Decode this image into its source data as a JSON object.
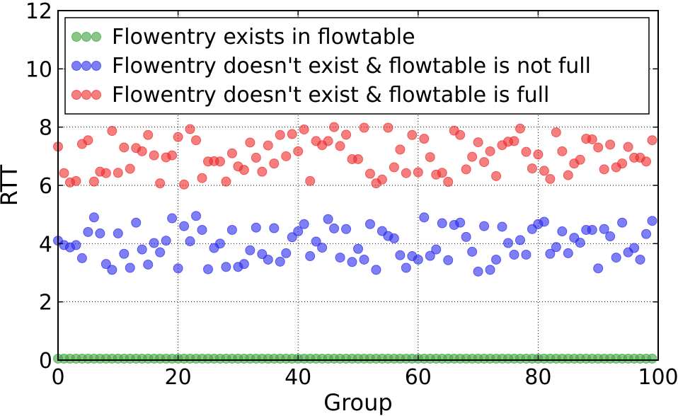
{
  "chart_data": {
    "type": "scatter",
    "title": "",
    "xlabel": "Group",
    "ylabel": "RTT",
    "xlim": [
      0,
      100
    ],
    "ylim": [
      0,
      12
    ],
    "xticks": [
      0,
      20,
      40,
      60,
      80,
      100
    ],
    "yticks": [
      0,
      2,
      4,
      6,
      8,
      10,
      12
    ],
    "grid": true,
    "legend_position": "top-left",
    "series": [
      {
        "name": "Flowentry exists in flowtable",
        "color": "#3aa23a",
        "x": [
          0,
          1,
          2,
          3,
          4,
          5,
          6,
          7,
          8,
          9,
          10,
          11,
          12,
          13,
          14,
          15,
          16,
          17,
          18,
          19,
          20,
          21,
          22,
          23,
          24,
          25,
          26,
          27,
          28,
          29,
          30,
          31,
          32,
          33,
          34,
          35,
          36,
          37,
          38,
          39,
          40,
          41,
          42,
          43,
          44,
          45,
          46,
          47,
          48,
          49,
          50,
          51,
          52,
          53,
          54,
          55,
          56,
          57,
          58,
          59,
          60,
          61,
          62,
          63,
          64,
          65,
          66,
          67,
          68,
          69,
          70,
          71,
          72,
          73,
          74,
          75,
          76,
          77,
          78,
          79,
          80,
          81,
          82,
          83,
          84,
          85,
          86,
          87,
          88,
          89,
          90,
          91,
          92,
          93,
          94,
          95,
          96,
          97,
          98,
          99
        ],
        "y": [
          0.05,
          0.05,
          0.05,
          0.05,
          0.05,
          0.05,
          0.05,
          0.05,
          0.05,
          0.05,
          0.05,
          0.05,
          0.05,
          0.05,
          0.05,
          0.05,
          0.05,
          0.05,
          0.05,
          0.05,
          0.05,
          0.05,
          0.05,
          0.05,
          0.05,
          0.05,
          0.05,
          0.05,
          0.05,
          0.05,
          0.05,
          0.05,
          0.05,
          0.05,
          0.05,
          0.05,
          0.05,
          0.05,
          0.05,
          0.05,
          0.05,
          0.05,
          0.05,
          0.05,
          0.05,
          0.05,
          0.05,
          0.05,
          0.05,
          0.05,
          0.05,
          0.05,
          0.05,
          0.05,
          0.05,
          0.05,
          0.05,
          0.05,
          0.05,
          0.05,
          0.05,
          0.05,
          0.05,
          0.05,
          0.05,
          0.05,
          0.05,
          0.05,
          0.05,
          0.05,
          0.05,
          0.05,
          0.05,
          0.05,
          0.05,
          0.05,
          0.05,
          0.05,
          0.05,
          0.05,
          0.05,
          0.05,
          0.05,
          0.05,
          0.05,
          0.05,
          0.05,
          0.05,
          0.05,
          0.05,
          0.05,
          0.05,
          0.05,
          0.05,
          0.05,
          0.05,
          0.05,
          0.05,
          0.05,
          0.05
        ]
      },
      {
        "name": "Flowentry doesn't exist & flowtable is not full",
        "color": "#2a2aee",
        "x": [
          0,
          1,
          2,
          3,
          4,
          5,
          6,
          7,
          8,
          9,
          10,
          11,
          12,
          13,
          14,
          15,
          16,
          17,
          18,
          19,
          20,
          21,
          22,
          23,
          24,
          25,
          26,
          27,
          28,
          29,
          30,
          31,
          32,
          33,
          34,
          35,
          36,
          37,
          38,
          39,
          40,
          41,
          42,
          43,
          44,
          45,
          46,
          47,
          48,
          49,
          50,
          51,
          52,
          53,
          54,
          55,
          56,
          57,
          58,
          59,
          60,
          61,
          62,
          63,
          64,
          65,
          66,
          67,
          68,
          69,
          70,
          71,
          72,
          73,
          74,
          75,
          76,
          77,
          78,
          79,
          80,
          81,
          82,
          83,
          84,
          85,
          86,
          87,
          88,
          89,
          90,
          91,
          92,
          93,
          94,
          95,
          96,
          97,
          98,
          99
        ],
        "y": [
          4.1,
          3.95,
          3.87,
          3.95,
          3.5,
          4.4,
          4.9,
          4.35,
          3.3,
          3.1,
          4.35,
          3.65,
          3.17,
          4.72,
          3.8,
          3.28,
          4.02,
          3.7,
          4.1,
          4.87,
          3.15,
          4.6,
          4.08,
          4.95,
          4.47,
          3.12,
          3.85,
          4.0,
          3.2,
          4.47,
          3.2,
          3.3,
          3.77,
          4.55,
          3.64,
          3.45,
          4.53,
          3.38,
          3.67,
          4.22,
          4.42,
          4.67,
          3.57,
          4.07,
          3.86,
          4.84,
          4.52,
          3.52,
          4.5,
          3.37,
          3.82,
          3.45,
          4.67,
          3.1,
          4.43,
          4.26,
          4.18,
          3.6,
          3.17,
          3.57,
          3.45,
          4.9,
          3.58,
          3.8,
          4.7,
          3.43,
          4.64,
          4.72,
          4.23,
          3.72,
          3.04,
          4.6,
          3.1,
          3.45,
          4.58,
          4.02,
          3.62,
          4.12,
          3.62,
          4.5,
          4.67,
          4.75,
          3.65,
          3.88,
          4.42,
          3.67,
          4.2,
          4.03,
          4.47,
          4.47,
          3.15,
          4.5,
          4.25,
          3.52,
          4.72,
          3.7,
          3.85,
          3.45,
          4.33,
          4.78
        ]
      },
      {
        "name": "Flowentry doesn't exist & flowtable is full",
        "color": "#ee2a2a",
        "x": [
          0,
          1,
          2,
          3,
          4,
          5,
          6,
          7,
          8,
          9,
          10,
          11,
          12,
          13,
          14,
          15,
          16,
          17,
          18,
          19,
          20,
          21,
          22,
          23,
          24,
          25,
          26,
          27,
          28,
          29,
          30,
          31,
          32,
          33,
          34,
          35,
          36,
          37,
          38,
          39,
          40,
          41,
          42,
          43,
          44,
          45,
          46,
          47,
          48,
          49,
          50,
          51,
          52,
          53,
          54,
          55,
          56,
          57,
          58,
          59,
          60,
          61,
          62,
          63,
          64,
          65,
          66,
          67,
          68,
          69,
          70,
          71,
          72,
          73,
          74,
          75,
          76,
          77,
          78,
          79,
          80,
          81,
          82,
          83,
          84,
          85,
          86,
          87,
          88,
          89,
          90,
          91,
          92,
          93,
          94,
          95,
          96,
          97,
          98,
          99
        ],
        "y": [
          7.33,
          6.42,
          6.1,
          6.15,
          7.42,
          7.55,
          6.13,
          6.47,
          6.42,
          7.87,
          6.43,
          7.3,
          6.57,
          7.28,
          7.17,
          7.73,
          7.03,
          6.07,
          6.96,
          7.03,
          7.66,
          6.03,
          7.93,
          7.55,
          6.25,
          6.82,
          6.83,
          6.82,
          6.13,
          7.1,
          6.65,
          6.53,
          7.47,
          6.95,
          6.47,
          7.37,
          6.75,
          7.73,
          7.0,
          7.76,
          7.17,
          7.92,
          6.15,
          7.52,
          7.38,
          7.52,
          8.0,
          7.35,
          7.74,
          6.9,
          6.9,
          7.98,
          6.4,
          6.07,
          6.2,
          7.98,
          6.62,
          7.23,
          6.42,
          7.73,
          6.45,
          7.6,
          6.97,
          6.37,
          6.43,
          6.12,
          7.88,
          7.73,
          6.55,
          6.98,
          7.48,
          6.8,
          7.17,
          6.32,
          7.38,
          7.5,
          7.52,
          7.95,
          7.15,
          6.58,
          7.06,
          6.5,
          6.22,
          7.82,
          7.17,
          6.35,
          6.75,
          6.88,
          7.6,
          7.58,
          7.3,
          6.55,
          7.4,
          6.62,
          6.75,
          7.32,
          6.95,
          6.95,
          6.82,
          7.55
        ]
      }
    ]
  }
}
